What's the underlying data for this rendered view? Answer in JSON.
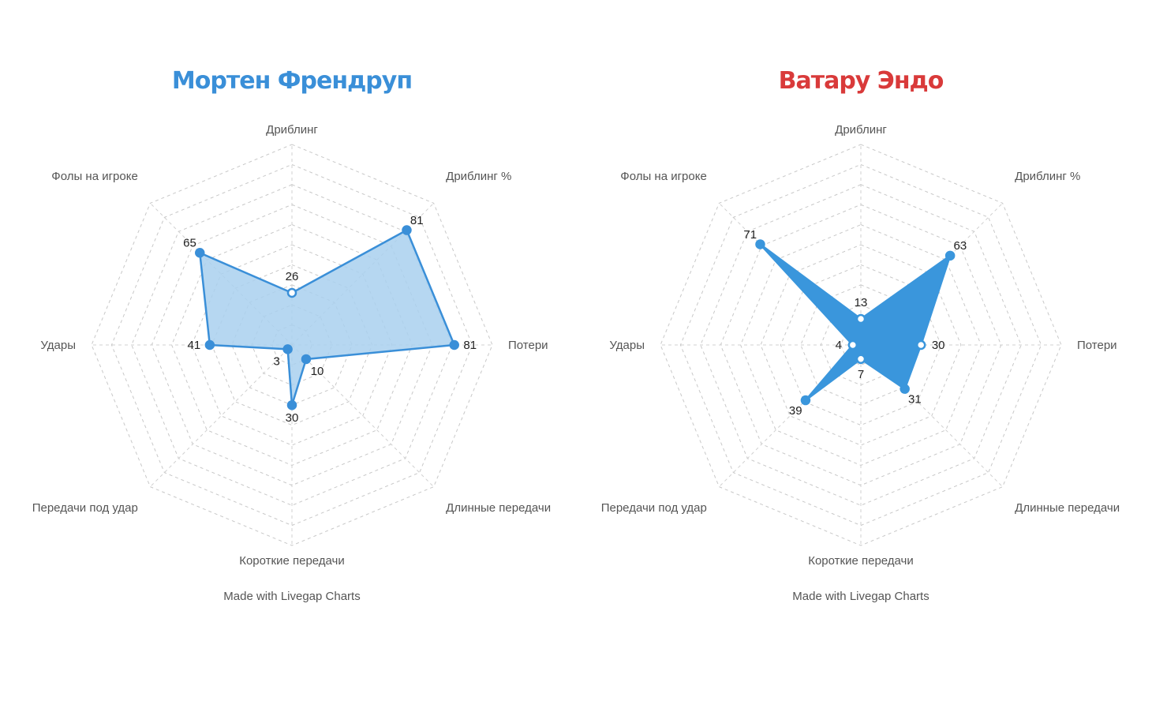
{
  "chart_data": [
    {
      "type": "radar",
      "title": "Мортен Френдруп",
      "title_color": "#3a8fd8",
      "axes": [
        "Дриблинг",
        "Дриблинг %",
        "Потери",
        "Длинные передачи",
        "Короткие передачи",
        "Передачи под удар",
        "Удары",
        "Фолы на игроке"
      ],
      "series": [
        {
          "values": [
            26,
            81,
            81,
            10,
            30,
            3,
            41,
            65
          ]
        }
      ],
      "range": [
        0,
        100
      ],
      "grid_rings": 10,
      "fill_color": "#a9d0ee",
      "line_color": "#3a8fd8",
      "footer": "Made with Livegap Charts"
    },
    {
      "type": "radar",
      "title": "Ватару Эндо",
      "title_color": "#d93a3a",
      "axes": [
        "Дриблинг",
        "Дриблинг %",
        "Потери",
        "Длинные передачи",
        "Короткие передачи",
        "Передачи под удар",
        "Удары",
        "Фолы на игроке"
      ],
      "series": [
        {
          "values": [
            13,
            63,
            30,
            31,
            7,
            39,
            4,
            71
          ]
        }
      ],
      "range": [
        0,
        100
      ],
      "grid_rings": 10,
      "fill_color": "#3a96dc",
      "line_color": "#3a96dc",
      "footer": "Made with Livegap Charts"
    }
  ]
}
